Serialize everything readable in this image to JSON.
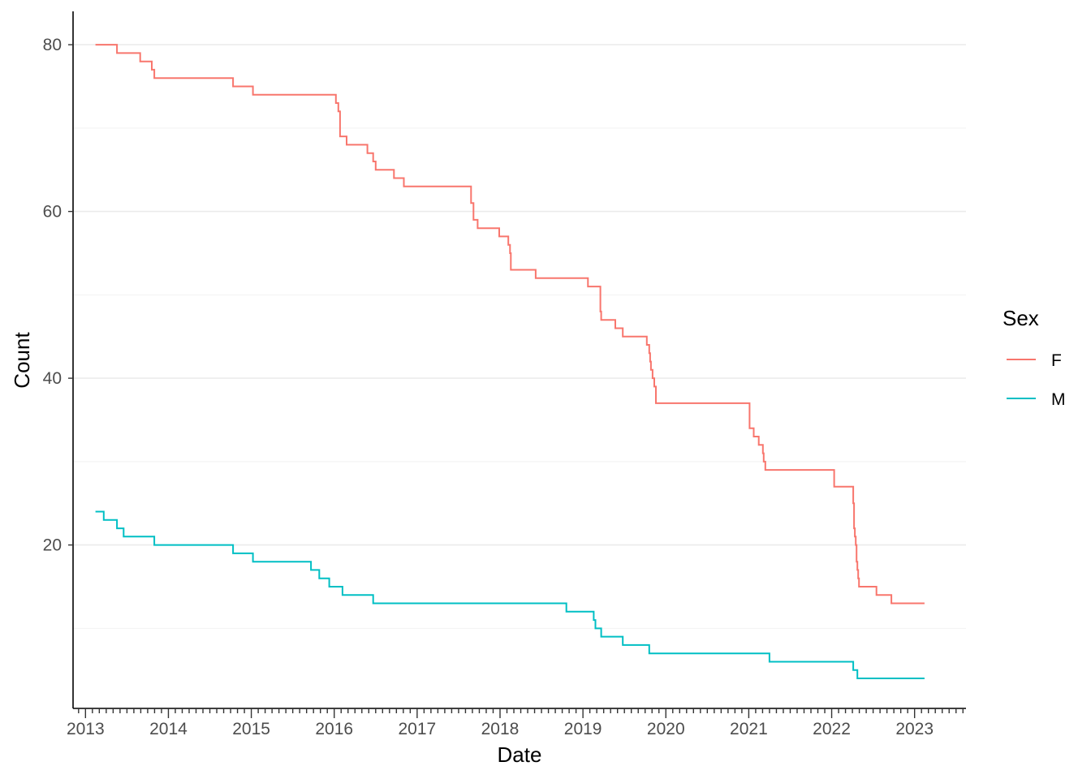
{
  "chart_data": {
    "type": "line",
    "step": true,
    "title": "",
    "xlabel": "Date",
    "ylabel": "Count",
    "x_ticks": [
      "2013",
      "2014",
      "2015",
      "2016",
      "2017",
      "2018",
      "2019",
      "2020",
      "2021",
      "2022",
      "2023"
    ],
    "y_ticks": [
      20,
      40,
      60,
      80
    ],
    "xlim": [
      2012.85,
      2023.62
    ],
    "ylim": [
      0.4,
      84
    ],
    "grid": "horizontal",
    "legend": {
      "title": "Sex",
      "position": "right"
    },
    "series": [
      {
        "name": "F",
        "color": "#F8766D",
        "x": [
          2013.12,
          2013.38,
          2013.66,
          2013.8,
          2013.83,
          2014.78,
          2015.02,
          2016.02,
          2016.05,
          2016.07,
          2016.15,
          2016.4,
          2016.47,
          2016.5,
          2016.53,
          2016.72,
          2016.84,
          2017.42,
          2017.65,
          2017.68,
          2017.73,
          2017.99,
          2018.1,
          2018.12,
          2018.13,
          2018.43,
          2019.06,
          2019.21,
          2019.22,
          2019.39,
          2019.48,
          2019.77,
          2019.8,
          2019.81,
          2019.82,
          2019.84,
          2019.86,
          2019.88,
          2021.01,
          2021.06,
          2021.12,
          2021.17,
          2021.18,
          2021.2,
          2021.25,
          2022.03,
          2022.26,
          2022.27,
          2022.28,
          2022.29,
          2022.3,
          2022.31,
          2022.32,
          2022.33,
          2022.54,
          2022.72,
          2023.12
        ],
        "y": [
          80,
          79,
          78,
          77,
          76,
          75,
          74,
          73,
          72,
          69,
          68,
          67,
          66,
          65,
          65,
          64,
          63,
          63,
          61,
          59,
          58,
          57,
          56,
          55,
          53,
          52,
          51,
          48,
          47,
          46,
          45,
          44,
          43,
          42,
          41,
          40,
          39,
          37,
          34,
          33,
          32,
          31,
          30,
          29,
          29,
          27,
          25,
          22,
          21,
          20,
          18,
          17,
          16,
          15,
          14,
          13,
          13
        ]
      },
      {
        "name": "M",
        "color": "#00BFC4",
        "x": [
          2013.12,
          2013.22,
          2013.38,
          2013.46,
          2013.83,
          2014.78,
          2015.02,
          2015.72,
          2015.82,
          2015.94,
          2016.1,
          2016.47,
          2018.8,
          2019.13,
          2019.15,
          2019.22,
          2019.48,
          2019.8,
          2021.25,
          2022.26,
          2022.31,
          2023.12
        ],
        "y": [
          24,
          23,
          22,
          21,
          20,
          19,
          18,
          17,
          16,
          15,
          14,
          13,
          12,
          11,
          10,
          9,
          8,
          7,
          6,
          5,
          4,
          4
        ]
      }
    ]
  }
}
